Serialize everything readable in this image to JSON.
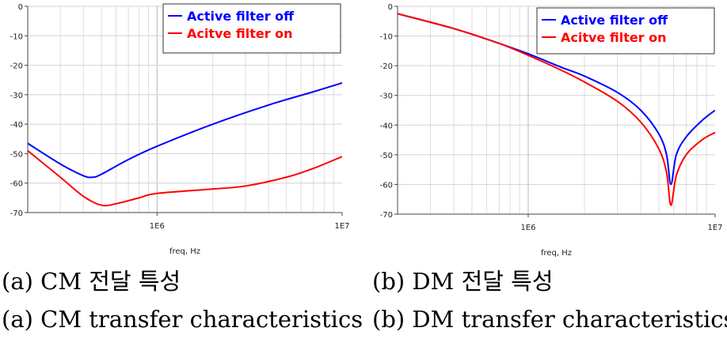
{
  "chart_data": [
    {
      "type": "line",
      "xscale": "log",
      "xlim": [
        200000,
        10000000
      ],
      "ylim": [
        -70,
        0
      ],
      "y_ticks": [
        0,
        -10,
        -20,
        -30,
        -40,
        -50,
        -60,
        -70
      ],
      "y_tick_labels": [
        "0",
        "-10",
        "-20",
        "-30",
        "-40",
        "-50",
        "-60",
        "-70"
      ],
      "x_ticks": [
        1000000,
        10000000
      ],
      "x_tick_labels": [
        "1E6",
        "1E7"
      ],
      "xlabel": "freq, Hz",
      "grid": true,
      "legend_position": "top-right",
      "series": [
        {
          "name": "Active filter off",
          "color": "#0000ff",
          "x": [
            200000,
            300000,
            400000,
            450000,
            500000,
            700000,
            1000000,
            2000000,
            4000000,
            7000000,
            10000000
          ],
          "y": [
            -46.5,
            -53.5,
            -57.5,
            -58,
            -57,
            -52,
            -47.5,
            -40,
            -33.5,
            -29,
            -26
          ]
        },
        {
          "name": "Acitve filter on",
          "color": "#ff0000",
          "x": [
            200000,
            300000,
            400000,
            500000,
            600000,
            800000,
            1000000,
            2000000,
            3000000,
            5000000,
            7000000,
            10000000
          ],
          "y": [
            -49,
            -58,
            -64.5,
            -67.5,
            -67,
            -65,
            -63.5,
            -62,
            -61,
            -58,
            -55,
            -51
          ]
        }
      ]
    },
    {
      "type": "line",
      "xscale": "log",
      "xlim": [
        200000,
        10000000
      ],
      "ylim": [
        -70,
        0
      ],
      "y_ticks": [
        0,
        -10,
        -20,
        -30,
        -40,
        -50,
        -60,
        -70
      ],
      "y_tick_labels": [
        "0",
        "-10",
        "-20",
        "-30",
        "-40",
        "-50",
        "-60",
        "-70"
      ],
      "x_ticks": [
        1000000,
        10000000
      ],
      "x_tick_labels": [
        "1E6",
        "1E7"
      ],
      "xlabel": "freq, Hz",
      "grid": true,
      "legend_position": "top-right",
      "series": [
        {
          "name": "Active filter off",
          "color": "#0000ff",
          "x": [
            200000,
            400000,
            700000,
            1000000,
            1500000,
            2000000,
            3000000,
            4000000,
            5000000,
            5500000,
            5800000,
            6200000,
            7000000,
            8500000,
            10000000
          ],
          "y": [
            -2.5,
            -7.5,
            -12.5,
            -16,
            -20.5,
            -23.5,
            -29,
            -35,
            -43,
            -50,
            -60,
            -50,
            -44,
            -38.5,
            -35
          ]
        },
        {
          "name": "Acitve filter on",
          "color": "#ff0000",
          "x": [
            200000,
            400000,
            700000,
            1000000,
            1500000,
            2000000,
            3000000,
            4000000,
            5000000,
            5500000,
            5800000,
            6200000,
            7000000,
            8500000,
            10000000
          ],
          "y": [
            -2.5,
            -7.5,
            -12.5,
            -16.5,
            -21.5,
            -25.5,
            -32,
            -39,
            -48,
            -56,
            -67,
            -57,
            -50,
            -45,
            -42.5
          ]
        }
      ]
    }
  ],
  "captions": {
    "a_korean": "(a) CM 전달 특성",
    "b_korean": "(b) DM 전달 특성",
    "a_english": "(a) CM transfer characteristics",
    "b_english": "(b) DM transfer characteristics"
  }
}
